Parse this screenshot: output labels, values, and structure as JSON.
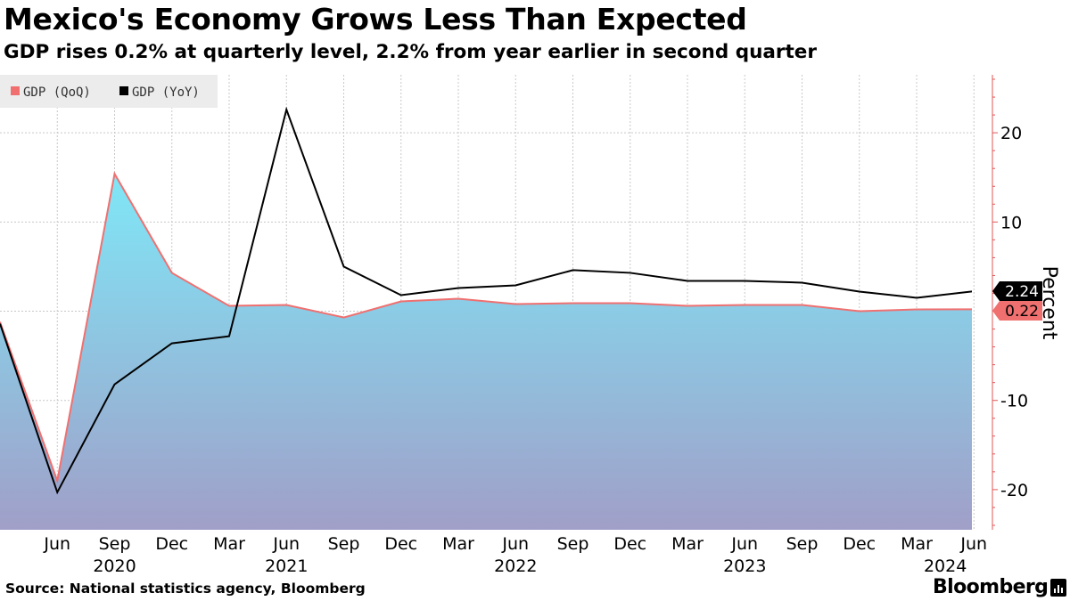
{
  "title": "Mexico's Economy Grows Less Than Expected",
  "subtitle": "GDP rises 0.2% at quarterly level, 2.2% from year earlier in second quarter",
  "source": "Source: National statistics agency, Bloomberg",
  "brand": "Bloomberg",
  "colors": {
    "qoq_line": "#f07070",
    "yoy_line": "#000000",
    "fill_top": "#7fe7f7",
    "fill_bottom": "#a09fc8",
    "axis": "#e05555",
    "grid": "#c8c8c8"
  },
  "chart_data": {
    "type": "area",
    "title": "Mexico's Economy Grows Less Than Expected",
    "ylabel": "Percent",
    "ylim": [
      -24.5,
      26.5
    ],
    "yticks": [
      20,
      10,
      0,
      -10,
      -20
    ],
    "ytick_labels": [
      "20",
      "10",
      "",
      "-10",
      "-20"
    ],
    "x": [
      "2020-Q1",
      "2020-Q2",
      "2020-Q3",
      "2020-Q4",
      "2021-Q1",
      "2021-Q2",
      "2021-Q3",
      "2021-Q4",
      "2022-Q1",
      "2022-Q2",
      "2022-Q3",
      "2022-Q4",
      "2023-Q1",
      "2023-Q2",
      "2023-Q3",
      "2023-Q4",
      "2024-Q1",
      "2024-Q2"
    ],
    "xtick_labels": [
      "Jun",
      "Sep",
      "Dec",
      "Mar",
      "Jun",
      "Sep",
      "Dec",
      "Mar",
      "Jun",
      "Sep",
      "Dec",
      "Mar",
      "Jun",
      "Sep",
      "Dec",
      "Mar",
      "Jun"
    ],
    "year_labels": [
      {
        "label": "2020",
        "index": 2
      },
      {
        "label": "2021",
        "index": 5
      },
      {
        "label": "2022",
        "index": 9
      },
      {
        "label": "2023",
        "index": 13
      },
      {
        "label": "2024",
        "index": 16.5
      }
    ],
    "legend_position": "top-left",
    "series": [
      {
        "name": "GDP (QoQ)",
        "style": "area",
        "values": [
          -1.2,
          -19.0,
          15.4,
          4.3,
          0.6,
          0.7,
          -0.7,
          1.1,
          1.4,
          0.8,
          0.9,
          0.9,
          0.6,
          0.7,
          0.7,
          0.0,
          0.2,
          0.22
        ],
        "end_label": "0.22"
      },
      {
        "name": "GDP (YoY)",
        "style": "line",
        "values": [
          -1.4,
          -20.3,
          -8.2,
          -3.6,
          -2.8,
          22.6,
          5.0,
          1.8,
          2.6,
          2.9,
          4.6,
          4.3,
          3.4,
          3.4,
          3.2,
          2.2,
          1.5,
          2.24
        ],
        "end_label": "2.24"
      }
    ]
  }
}
